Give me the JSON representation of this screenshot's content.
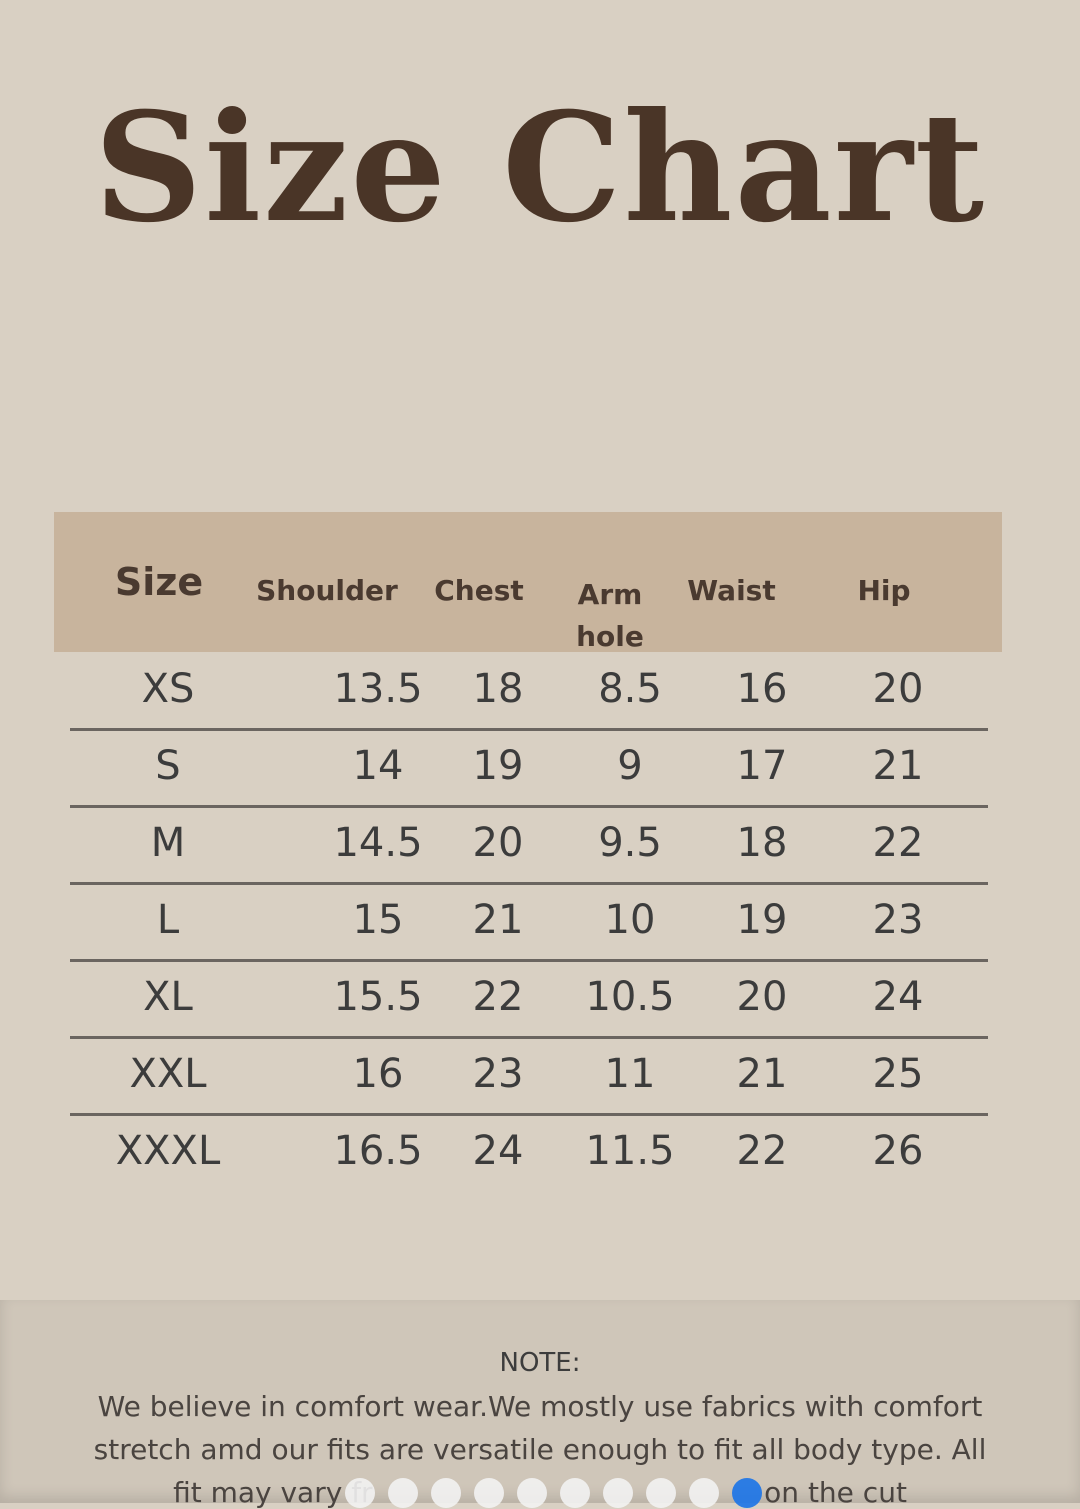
{
  "title": "Size Chart",
  "table": {
    "headers": [
      "Size",
      "Shoulder",
      "Chest",
      "Arm hole",
      "Waist",
      "Hip"
    ],
    "rows": [
      [
        "XS",
        "13.5",
        "18",
        "8.5",
        "16",
        "20"
      ],
      [
        "S",
        "14",
        "19",
        "9",
        "17",
        "21"
      ],
      [
        "M",
        "14.5",
        "20",
        "9.5",
        "18",
        "22"
      ],
      [
        "L",
        "15",
        "21",
        "10",
        "19",
        "23"
      ],
      [
        "XL",
        "15.5",
        "22",
        "10.5",
        "20",
        "24"
      ],
      [
        "XXL",
        "16",
        "23",
        "11",
        "21",
        "25"
      ],
      [
        "XXXL",
        "16.5",
        "24",
        "11.5",
        "22",
        "26"
      ]
    ]
  },
  "note": {
    "heading": "NOTE:",
    "line1": "We believe in comfort wear.We mostly use fabrics with comfort",
    "line2": "stretch amd our fits are versatile enough to fit all body type. All",
    "line3": "fit may vary fr                                            on the cut"
  },
  "carousel": {
    "count": 10,
    "active_index": 9,
    "active_color": "#1a73e8"
  }
}
